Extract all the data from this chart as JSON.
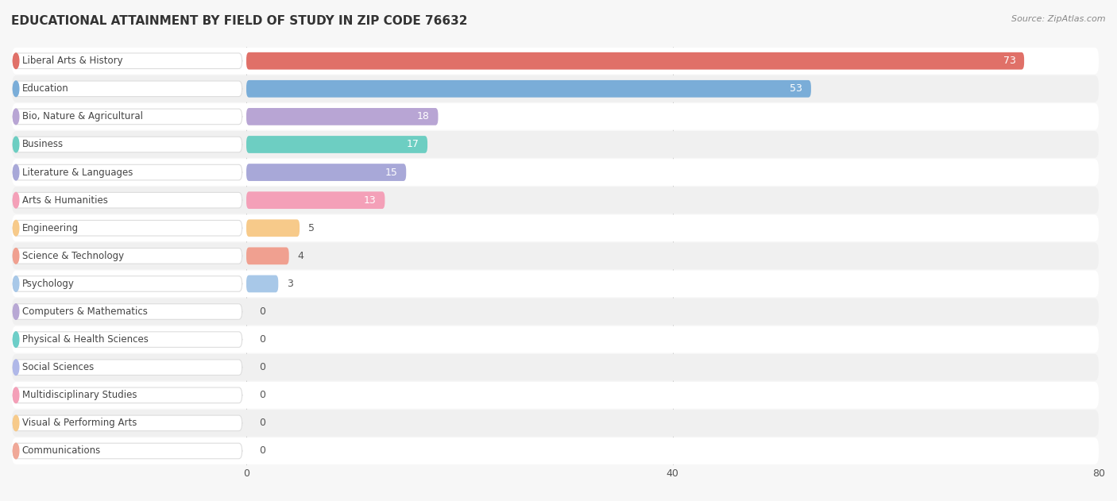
{
  "title": "EDUCATIONAL ATTAINMENT BY FIELD OF STUDY IN ZIP CODE 76632",
  "source": "Source: ZipAtlas.com",
  "categories": [
    "Liberal Arts & History",
    "Education",
    "Bio, Nature & Agricultural",
    "Business",
    "Literature & Languages",
    "Arts & Humanities",
    "Engineering",
    "Science & Technology",
    "Psychology",
    "Computers & Mathematics",
    "Physical & Health Sciences",
    "Social Sciences",
    "Multidisciplinary Studies",
    "Visual & Performing Arts",
    "Communications"
  ],
  "values": [
    73,
    53,
    18,
    17,
    15,
    13,
    5,
    4,
    3,
    0,
    0,
    0,
    0,
    0,
    0
  ],
  "bar_colors": [
    "#e07068",
    "#7aadd8",
    "#b8a5d4",
    "#6dcec2",
    "#a8a8d8",
    "#f4a0b8",
    "#f7ca8a",
    "#f0a090",
    "#a8c8e8",
    "#b8a8d4",
    "#6dcec8",
    "#b0b8e8",
    "#f4a0b8",
    "#f7ca8a",
    "#f0a898"
  ],
  "xlim": [
    0,
    80
  ],
  "xticks": [
    0,
    40,
    80
  ],
  "background_color": "#f7f7f7",
  "row_colors": [
    "#ffffff",
    "#f0f0f0"
  ],
  "title_fontsize": 11,
  "bar_height": 0.62,
  "label_fontsize": 8.5,
  "value_fontsize": 9
}
